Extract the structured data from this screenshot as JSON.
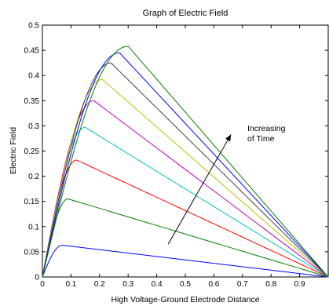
{
  "chart_data": {
    "type": "line",
    "title": "Graph of Electric Field",
    "xlabel": "High Voltage-Ground Electrode Distance",
    "ylabel": "Electric Field",
    "xlim": [
      0,
      1
    ],
    "ylim": [
      0,
      0.5
    ],
    "xticks": [
      "0",
      "0.1",
      "0.2",
      "0.3",
      "0.4",
      "0.5",
      "0.6",
      "0.7",
      "0.8",
      "0.9"
    ],
    "yticks": [
      "0",
      "0.05",
      "0.1",
      "0.15",
      "0.2",
      "0.25",
      "0.3",
      "0.35",
      "0.4",
      "0.45",
      "0.5"
    ],
    "grid": false,
    "legend": "none",
    "annotation": {
      "lines": [
        "Increasing",
        "of Time"
      ],
      "arrow_from": [
        0.44,
        0.065
      ],
      "arrow_to": [
        0.66,
        0.283
      ]
    },
    "series": [
      {
        "color": "#0000ff",
        "peak_x": 0.07,
        "peak_y": 0.063
      },
      {
        "color": "#008000",
        "peak_x": 0.09,
        "peak_y": 0.155
      },
      {
        "color": "#ff0000",
        "peak_x": 0.12,
        "peak_y": 0.232
      },
      {
        "color": "#00bfbf",
        "peak_x": 0.15,
        "peak_y": 0.297
      },
      {
        "color": "#bf00bf",
        "peak_x": 0.18,
        "peak_y": 0.35
      },
      {
        "color": "#bfbf00",
        "peak_x": 0.21,
        "peak_y": 0.392
      },
      {
        "color": "#404040",
        "peak_x": 0.24,
        "peak_y": 0.425
      },
      {
        "color": "#0000ff",
        "peak_x": 0.27,
        "peak_y": 0.445
      },
      {
        "color": "#008000",
        "peak_x": 0.3,
        "peak_y": 0.458
      }
    ]
  }
}
